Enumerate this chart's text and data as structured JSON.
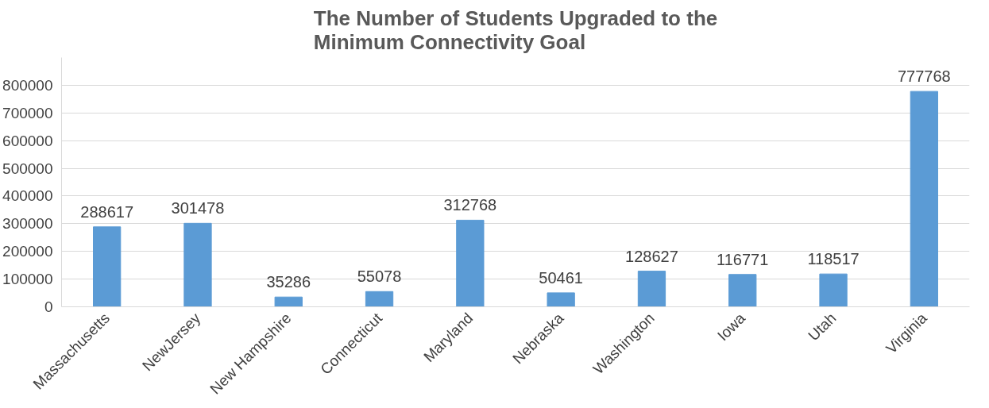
{
  "chart_data": {
    "type": "bar",
    "title": "The Number of Students Upgraded to the Minimum Connectivity Goal",
    "categories": [
      "Massachusetts",
      "NewJersey",
      "New Hampshire",
      "Connecticut",
      "Maryland",
      "Nebraska",
      "Washington",
      "Iowa",
      "Utah",
      "Virginia"
    ],
    "values": [
      288617,
      301478,
      35286,
      55078,
      312768,
      50461,
      128627,
      116771,
      118517,
      777768
    ],
    "color": "#5b9bd5",
    "ylim": [
      0,
      900000
    ],
    "yticks": [
      0,
      100000,
      200000,
      300000,
      400000,
      500000,
      600000,
      700000,
      800000
    ],
    "grid": "y",
    "data_labels": true
  }
}
